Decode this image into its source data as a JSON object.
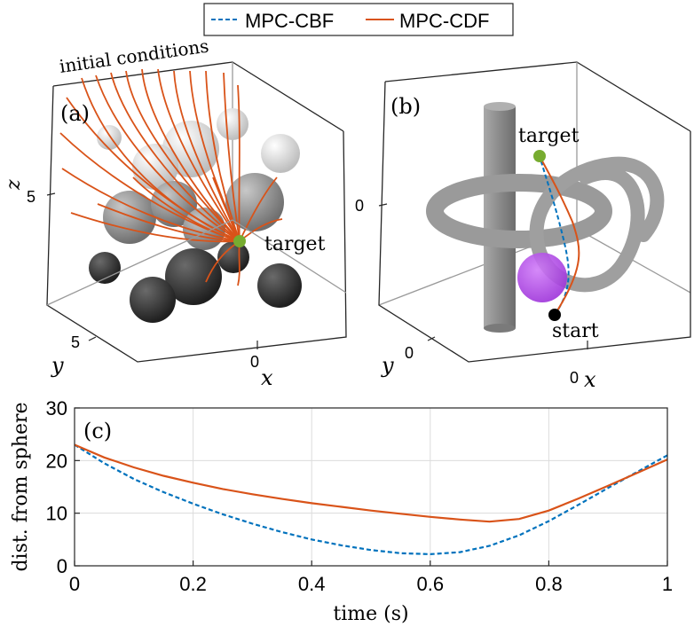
{
  "legend": {
    "entries": [
      {
        "label": "MPC-CBF",
        "color": "#0072BD",
        "style": "dashed"
      },
      {
        "label": "MPC-CDF",
        "color": "#D95319",
        "style": "solid"
      }
    ]
  },
  "panel_a": {
    "tag": "(a)",
    "annotation_initial": "initial conditions",
    "annotation_target": "target",
    "z_label": "z",
    "z_tick": "5",
    "y_label": "y",
    "y_tick": "5",
    "x_label": "x",
    "x_tick": "0",
    "colors": {
      "trajectory": "#D95319",
      "target": "#77AC30"
    }
  },
  "panel_b": {
    "tag": "(b)",
    "annotation_target": "target",
    "annotation_start": "start",
    "z_tick": "0",
    "y_label": "y",
    "y_tick": "0",
    "x_label": "x",
    "x_tick": "0",
    "colors": {
      "obstacle": "#8c8c8c",
      "sphere": "#b040e8",
      "start": "#000000",
      "target": "#77AC30"
    }
  },
  "chart_data": {
    "type": "line",
    "tag": "(c)",
    "xlabel": "time (s)",
    "ylabel": "dist. from sphere",
    "xlim": [
      0,
      1
    ],
    "ylim": [
      0,
      30
    ],
    "xticks": [
      "0",
      "0.2",
      "0.4",
      "0.6",
      "0.8",
      "1"
    ],
    "yticks": [
      "0",
      "10",
      "20",
      "30"
    ],
    "grid": true,
    "legend_position": "top-center",
    "series": [
      {
        "name": "MPC-CBF",
        "color": "#0072BD",
        "style": "dashed",
        "x": [
          0,
          0.05,
          0.1,
          0.15,
          0.2,
          0.25,
          0.3,
          0.35,
          0.4,
          0.45,
          0.5,
          0.55,
          0.6,
          0.65,
          0.7,
          0.75,
          0.8,
          0.85,
          0.9,
          0.95,
          1.0
        ],
        "y": [
          23,
          19.5,
          16.5,
          14.0,
          11.8,
          9.8,
          8.0,
          6.4,
          5.0,
          3.9,
          3.0,
          2.4,
          2.2,
          2.6,
          3.8,
          5.8,
          8.5,
          11.6,
          14.8,
          17.9,
          21.0
        ]
      },
      {
        "name": "MPC-CDF",
        "color": "#D95319",
        "style": "solid",
        "x": [
          0,
          0.05,
          0.1,
          0.15,
          0.2,
          0.25,
          0.3,
          0.35,
          0.4,
          0.45,
          0.5,
          0.55,
          0.6,
          0.65,
          0.7,
          0.75,
          0.8,
          0.85,
          0.9,
          0.95,
          1.0
        ],
        "y": [
          23,
          20.6,
          18.7,
          17.1,
          15.8,
          14.6,
          13.6,
          12.7,
          11.9,
          11.2,
          10.5,
          9.9,
          9.3,
          8.8,
          8.4,
          8.9,
          10.5,
          12.8,
          15.2,
          17.7,
          20.2
        ]
      }
    ]
  }
}
